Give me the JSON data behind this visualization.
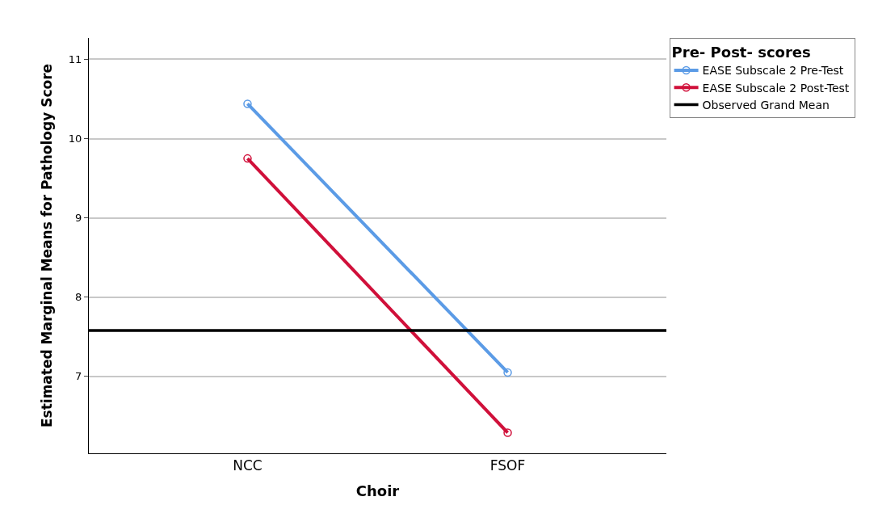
{
  "chart_data": {
    "type": "line",
    "xlabel": "Choir",
    "ylabel": "Estimated Marginal Means for Pathology Score",
    "legend_title": "Pre- Post- scores",
    "categories": [
      "NCC",
      "FSOF"
    ],
    "series": [
      {
        "name": "EASE Subscale 2 Pre-Test",
        "color": "#5b9be6",
        "values": [
          10.44,
          7.05
        ]
      },
      {
        "name": "EASE Subscale 2 Post-Test",
        "color": "#d0103a",
        "values": [
          9.75,
          6.29
        ]
      }
    ],
    "ref_lines": [
      {
        "axis": "y",
        "value": 7.58,
        "label": "Observed Grand Mean",
        "color": "#000000"
      }
    ],
    "ylim": [
      6.03,
      11.27
    ],
    "yticks": [
      7,
      8,
      9,
      10,
      11
    ],
    "grid": "y",
    "legend": "top right",
    "marker": "circle",
    "line_style": "solid"
  }
}
